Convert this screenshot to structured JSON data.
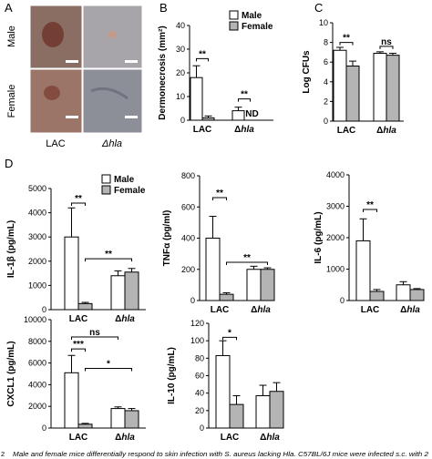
{
  "panel_letters": {
    "a": "A",
    "b": "B",
    "c": "C",
    "d": "D"
  },
  "photos": {
    "row_labels": [
      "Male",
      "Female"
    ],
    "col_labels": [
      "LAC",
      "Δhla"
    ],
    "tiles": [
      {
        "name": "male-lac-photo",
        "color": "#8a6e63"
      },
      {
        "name": "male-dhla-photo",
        "color": "#a7a5aa"
      },
      {
        "name": "female-lac-photo",
        "color": "#9b7668"
      },
      {
        "name": "female-dhla-photo",
        "color": "#8c8e98"
      }
    ]
  },
  "colors": {
    "male": "#ffffff",
    "female": "#b4b4b4",
    "stroke": "#000000"
  },
  "caption": "Male and female mice differentially respond to skin infection with S. aureus lacking Hla. C57BL/6J mice were infected s.c. with 2",
  "caption_number": "2",
  "chart_data": [
    {
      "type": "bar",
      "id": "B",
      "categories": [
        "LAC",
        "Δhla"
      ],
      "ylabel": "Dermonecrosis (mm²)",
      "ylim": [
        0,
        40
      ],
      "yticks": [
        0,
        10,
        20,
        30,
        40
      ],
      "legend": {
        "entries": [
          "Male",
          "Female"
        ],
        "placement": "top-right"
      },
      "series": [
        {
          "name": "Male",
          "values": [
            18,
            4
          ],
          "errors": [
            5,
            1.5
          ]
        },
        {
          "name": "Female",
          "values": [
            1,
            0
          ],
          "errors": [
            0.8,
            0
          ]
        }
      ],
      "bar_labels": [
        {
          "text": "ND",
          "category": 1,
          "series": 1
        }
      ],
      "annotations": [
        {
          "text": "**",
          "from": [
            0,
            0
          ],
          "to": [
            0,
            1
          ],
          "y": 26
        },
        {
          "text": "**",
          "from": [
            1,
            0
          ],
          "to": [
            1,
            1
          ],
          "y": 9
        }
      ]
    },
    {
      "type": "bar",
      "id": "C",
      "categories": [
        "LAC",
        "Δhla"
      ],
      "ylabel": "Log CFUs",
      "ylim": [
        0,
        10
      ],
      "yticks": [
        0,
        2,
        4,
        6,
        8,
        10
      ],
      "series": [
        {
          "name": "Male",
          "values": [
            7.2,
            6.9
          ],
          "errors": [
            0.3,
            0.15
          ]
        },
        {
          "name": "Female",
          "values": [
            5.6,
            6.7
          ],
          "errors": [
            0.5,
            0.2
          ]
        }
      ],
      "annotations": [
        {
          "text": "**",
          "from": [
            0,
            0
          ],
          "to": [
            0,
            1
          ],
          "y": 8
        },
        {
          "text": "ns",
          "from": [
            1,
            0
          ],
          "to": [
            1,
            1
          ],
          "y": 7.6
        }
      ]
    },
    {
      "type": "bar",
      "id": "IL-1b",
      "categories": [
        "LAC",
        "Δhla"
      ],
      "ylabel": "IL-1β (pg/mL)",
      "ylim": [
        0,
        5000
      ],
      "yticks": [
        0,
        1000,
        2000,
        3000,
        4000,
        5000
      ],
      "legend": {
        "entries": [
          "Male",
          "Female"
        ],
        "placement": "top-right"
      },
      "series": [
        {
          "name": "Male",
          "values": [
            3000,
            1400
          ],
          "errors": [
            1200,
            200
          ]
        },
        {
          "name": "Female",
          "values": [
            250,
            1550
          ],
          "errors": [
            50,
            150
          ]
        }
      ],
      "annotations": [
        {
          "text": "**",
          "from": [
            0,
            0
          ],
          "to": [
            0,
            1
          ],
          "y": 4400
        },
        {
          "text": "**",
          "from": [
            0,
            1
          ],
          "to": [
            1,
            1
          ],
          "y": 2100
        }
      ]
    },
    {
      "type": "bar",
      "id": "TNFa",
      "categories": [
        "LAC",
        "Δhla"
      ],
      "ylabel": "TNFα (pg/ml)",
      "ylim": [
        0,
        800
      ],
      "yticks": [
        0,
        200,
        400,
        600,
        800
      ],
      "series": [
        {
          "name": "Male",
          "values": [
            400,
            200
          ],
          "errors": [
            140,
            20
          ]
        },
        {
          "name": "Female",
          "values": [
            40,
            200
          ],
          "errors": [
            10,
            10
          ]
        }
      ],
      "annotations": [
        {
          "text": "**",
          "from": [
            0,
            0
          ],
          "to": [
            0,
            1
          ],
          "y": 660
        },
        {
          "text": "**",
          "from": [
            0,
            1
          ],
          "to": [
            1,
            1
          ],
          "y": 245
        }
      ]
    },
    {
      "type": "bar",
      "id": "IL-6",
      "categories": [
        "LAC",
        "Δhla"
      ],
      "ylabel": "IL-6 (pg/mL)",
      "ylim": [
        0,
        4000
      ],
      "yticks": [
        0,
        1000,
        2000,
        3000,
        4000
      ],
      "series": [
        {
          "name": "Male",
          "values": [
            1900,
            500
          ],
          "errors": [
            700,
            100
          ]
        },
        {
          "name": "Female",
          "values": [
            290,
            350
          ],
          "errors": [
            60,
            30
          ]
        }
      ],
      "annotations": [
        {
          "text": "**",
          "from": [
            0,
            0
          ],
          "to": [
            0,
            1
          ],
          "y": 2900
        }
      ]
    },
    {
      "type": "bar",
      "id": "CXCL1",
      "categories": [
        "LAC",
        "Δhla"
      ],
      "ylabel": "CXCL1 (pg/mL)",
      "ylim": [
        0,
        10000
      ],
      "yticks": [
        0,
        2000,
        4000,
        6000,
        8000,
        10000
      ],
      "series": [
        {
          "name": "Male",
          "values": [
            5100,
            1800
          ],
          "errors": [
            1600,
            150
          ]
        },
        {
          "name": "Female",
          "values": [
            350,
            1600
          ],
          "errors": [
            80,
            200
          ]
        }
      ],
      "annotations": [
        {
          "text": "***",
          "from": [
            0,
            0
          ],
          "to": [
            0,
            1
          ],
          "y": 7300
        },
        {
          "text": "ns",
          "from": [
            0,
            0
          ],
          "to": [
            1,
            0
          ],
          "y": 8400
        },
        {
          "text": "*",
          "from": [
            0,
            1
          ],
          "to": [
            1,
            1
          ],
          "y": 5500
        }
      ]
    },
    {
      "type": "bar",
      "id": "IL-10",
      "categories": [
        "LAC",
        "Δhla"
      ],
      "ylabel": "IL-10 (pg/mL)",
      "ylim": [
        0,
        120
      ],
      "yticks": [
        0,
        20,
        40,
        60,
        80,
        100,
        120
      ],
      "series": [
        {
          "name": "Male",
          "values": [
            83,
            37
          ],
          "errors": [
            17,
            12
          ]
        },
        {
          "name": "Female",
          "values": [
            27,
            42
          ],
          "errors": [
            10,
            10
          ]
        }
      ],
      "annotations": [
        {
          "text": "*",
          "from": [
            0,
            0
          ],
          "to": [
            0,
            1
          ],
          "y": 104
        }
      ]
    }
  ]
}
